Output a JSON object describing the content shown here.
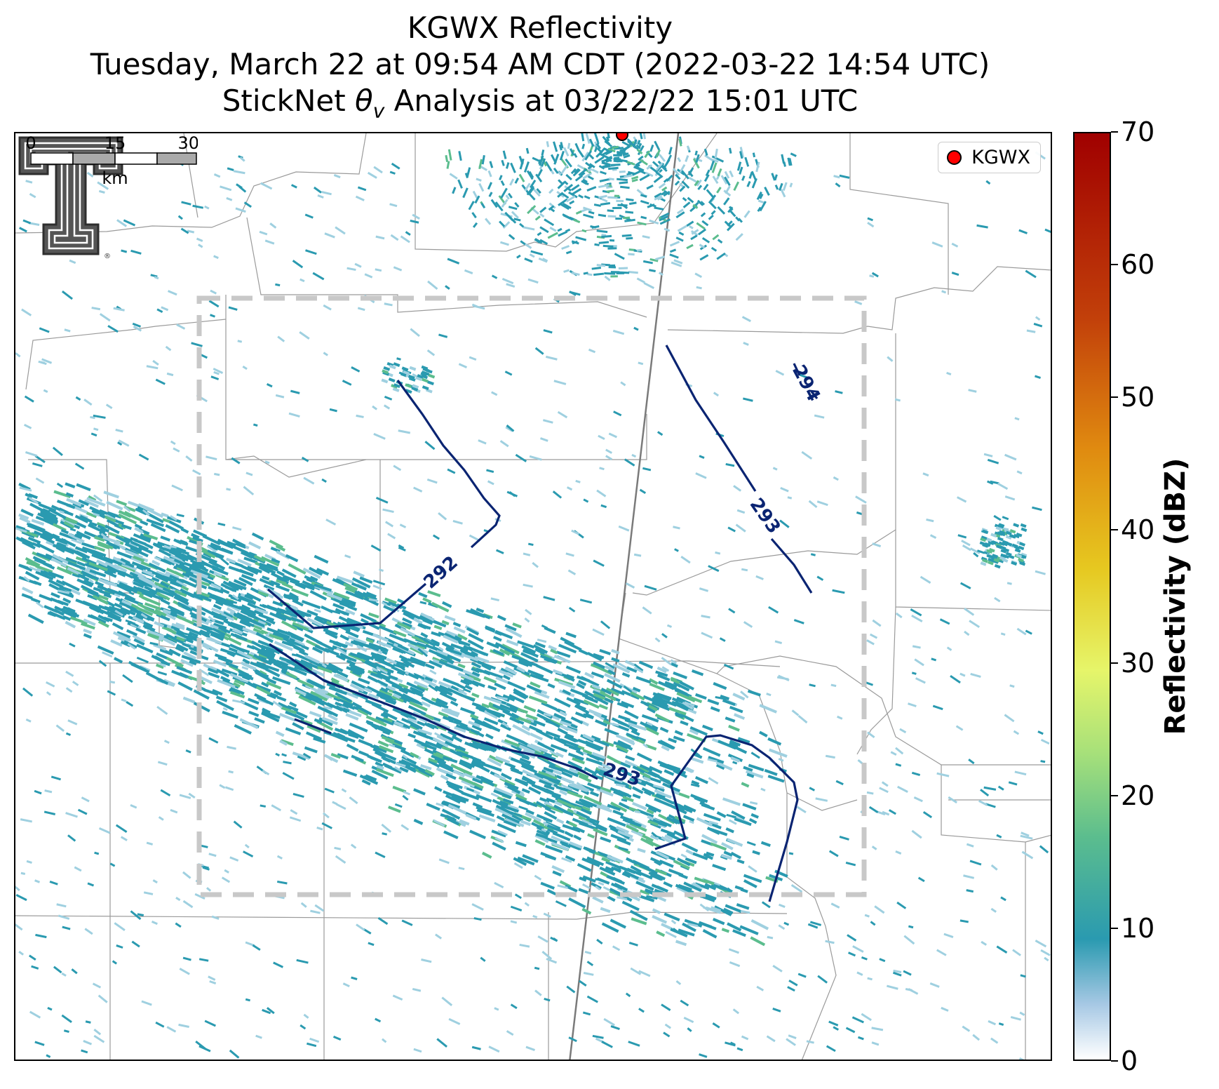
{
  "title": {
    "line1": "KGWX Reflectivity",
    "line2": "Tuesday, March 22 at 09:54 AM CDT (2022-03-22 14:54 UTC)",
    "line3_prefix": "StickNet ",
    "line3_theta": "θ",
    "line3_sub": "v",
    "line3_suffix": " Analysis at 03/22/22 15:01 UTC"
  },
  "legend": {
    "label": "KGWX",
    "marker_color": "#ff0000"
  },
  "colorbar": {
    "title": "Reflectivity (dBZ)",
    "ticks": [
      "0",
      "10",
      "20",
      "30",
      "40",
      "50",
      "60",
      "70"
    ],
    "range": [
      0,
      70
    ]
  },
  "contours": {
    "color": "#0a2472",
    "labels": [
      "292",
      "293",
      "293",
      "294"
    ]
  },
  "scalebar": {
    "ticks": [
      "0",
      "15",
      "30"
    ],
    "unit": "km"
  },
  "colors": {
    "echo_main": "#2a9ab0",
    "echo_light": "#9fd0e0",
    "echo_green": "#5bbd8e",
    "analysis_box": "#c8c8c8",
    "county_lines": "#9a9a9a",
    "highway": "#7a7a7a"
  },
  "logo": {
    "name": "texas-tech-double-t-logo"
  }
}
